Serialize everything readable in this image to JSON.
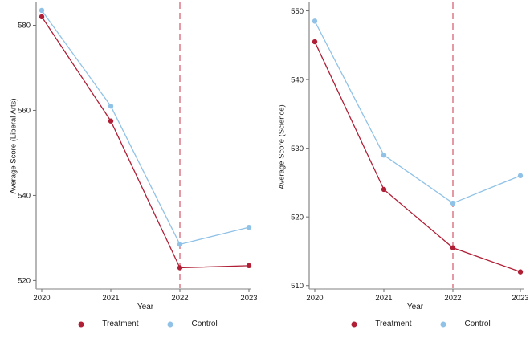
{
  "figure": {
    "legend": {
      "items": [
        {
          "label": "Treatment",
          "key": "treatment"
        },
        {
          "label": "Control",
          "key": "control"
        }
      ]
    },
    "colors": {
      "treatment": "#b01f36",
      "control": "#90c2e7",
      "event_line": "#d9707f",
      "axis_line": "#6e6e6e",
      "baseline": "#9a9a9a",
      "text": "#1c1c1c"
    }
  },
  "chart_data": [
    {
      "type": "line",
      "title": "",
      "xlabel": "Year",
      "ylabel": "Average Score (Liberal Arts)",
      "x": [
        2020,
        2021,
        2022,
        2023
      ],
      "series": [
        {
          "name": "Treatment",
          "key": "treatment",
          "values": [
            582,
            557.5,
            523,
            523.5
          ]
        },
        {
          "name": "Control",
          "key": "control",
          "values": [
            583.5,
            561,
            528.5,
            532.5
          ]
        }
      ],
      "yticks": [
        520,
        540,
        560,
        580
      ],
      "ylim": [
        518,
        585
      ],
      "vline_x": 2022,
      "vline_style": "dashed",
      "grid": false,
      "legend_position": "bottom"
    },
    {
      "type": "line",
      "title": "",
      "xlabel": "Year",
      "ylabel": "Average Score (Science)",
      "x": [
        2020,
        2021,
        2022,
        2023
      ],
      "series": [
        {
          "name": "Treatment",
          "key": "treatment",
          "values": [
            545.5,
            524,
            515.5,
            512
          ]
        },
        {
          "name": "Control",
          "key": "control",
          "values": [
            548.5,
            529,
            522,
            526
          ]
        }
      ],
      "yticks": [
        510,
        520,
        530,
        540,
        550
      ],
      "ylim": [
        509.5,
        551
      ],
      "vline_x": 2022,
      "vline_style": "dashed",
      "grid": false,
      "legend_position": "bottom"
    }
  ]
}
